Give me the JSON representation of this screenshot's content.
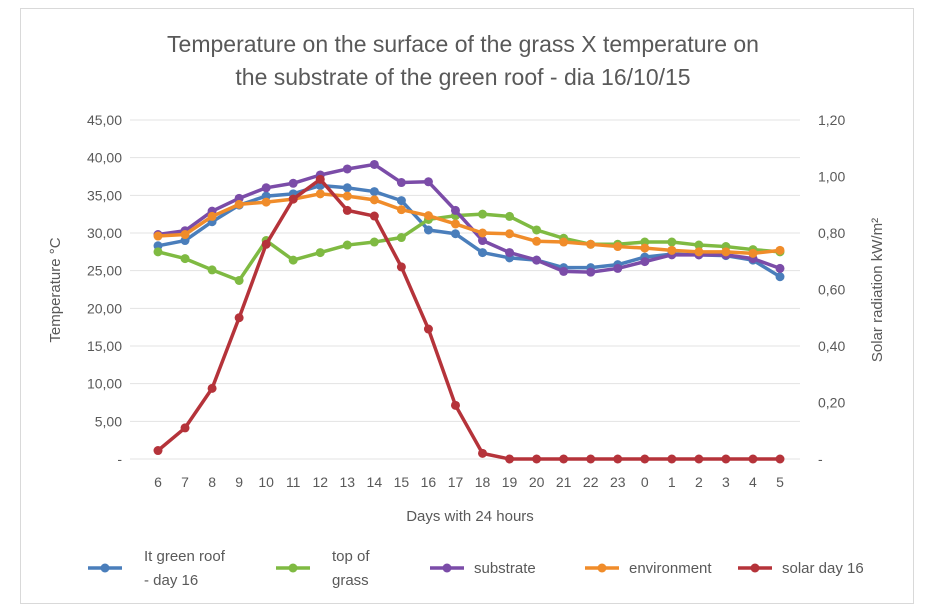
{
  "chart_data": {
    "type": "line",
    "title_lines": [
      "Temperature on the surface of the grass X temperature on",
      "the substrate of the green roof  - dia 16/10/15"
    ],
    "xlabel": "Days with 24 hours",
    "ylabel": "Temperature °C",
    "y2label": "Solar radiation kW/m²",
    "categories": [
      "6",
      "7",
      "8",
      "9",
      "10",
      "11",
      "12",
      "13",
      "14",
      "15",
      "16",
      "17",
      "18",
      "19",
      "20",
      "21",
      "22",
      "23",
      "0",
      "1",
      "2",
      "3",
      "4",
      "5"
    ],
    "ylim": [
      0,
      45
    ],
    "y_ticks": [
      "-",
      "5,00",
      "10,00",
      "15,00",
      "20,00",
      "25,00",
      "30,00",
      "35,00",
      "40,00",
      "45,00"
    ],
    "y2lim": [
      0,
      1.2
    ],
    "y2_ticks": [
      "-",
      "0,20",
      "0,40",
      "0,60",
      "0,80",
      "1,00",
      "1,20"
    ],
    "grid": true,
    "legend_position": "bottom",
    "series": [
      {
        "name": "It green roof - day 16",
        "legend_lines": [
          "It green roof",
          "- day 16"
        ],
        "color": "#4a7ebb",
        "axis": "left",
        "values": [
          28.3,
          29.0,
          31.5,
          33.7,
          34.9,
          35.2,
          36.3,
          36.0,
          35.5,
          34.3,
          30.4,
          29.9,
          27.4,
          26.7,
          26.4,
          25.4,
          25.4,
          25.8,
          26.8,
          27.2,
          27.1,
          27.0,
          26.4,
          24.2
        ]
      },
      {
        "name": "top of grass",
        "legend_lines": [
          "top of",
          "grass"
        ],
        "color": "#7fba42",
        "axis": "left",
        "values": [
          27.5,
          26.6,
          25.1,
          23.7,
          29.0,
          26.4,
          27.4,
          28.4,
          28.8,
          29.4,
          31.8,
          32.3,
          32.5,
          32.2,
          30.4,
          29.3,
          28.5,
          28.5,
          28.8,
          28.8,
          28.4,
          28.2,
          27.8,
          27.5
        ]
      },
      {
        "name": "substrate",
        "legend_lines": [
          "substrate"
        ],
        "color": "#7b4ca8",
        "axis": "left",
        "values": [
          29.8,
          30.3,
          32.9,
          34.6,
          36.0,
          36.6,
          37.7,
          38.5,
          39.1,
          36.7,
          36.8,
          33.0,
          29.0,
          27.4,
          26.4,
          24.9,
          24.8,
          25.3,
          26.2,
          27.1,
          27.1,
          27.1,
          26.6,
          25.3
        ]
      },
      {
        "name": "environment",
        "legend_lines": [
          "environment"
        ],
        "color": "#f08c2a",
        "axis": "left",
        "values": [
          29.6,
          29.8,
          32.2,
          33.8,
          34.1,
          34.5,
          35.2,
          34.9,
          34.4,
          33.1,
          32.3,
          31.2,
          30.0,
          29.9,
          28.9,
          28.8,
          28.5,
          28.2,
          28.0,
          27.7,
          27.5,
          27.5,
          27.3,
          27.7
        ]
      },
      {
        "name": "solar day 16",
        "legend_lines": [
          "solar day 16"
        ],
        "color": "#b5333a",
        "axis": "right",
        "values": [
          0.03,
          0.11,
          0.25,
          0.5,
          0.76,
          0.92,
          0.99,
          0.88,
          0.86,
          0.68,
          0.46,
          0.19,
          0.02,
          0,
          0,
          0,
          0,
          0,
          0,
          0,
          0,
          0,
          0,
          0
        ]
      }
    ]
  }
}
